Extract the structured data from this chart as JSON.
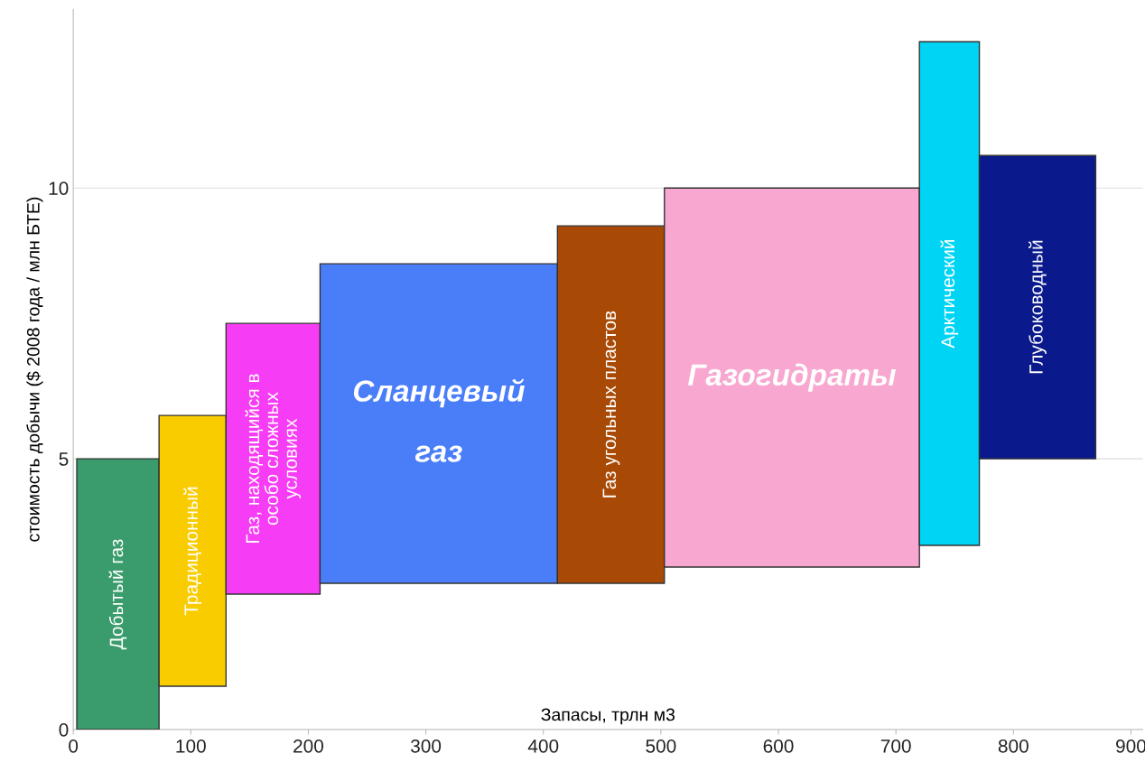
{
  "chart_data": {
    "type": "histogram",
    "ylabel": "стоимость добычи ($ 2008 года / млн БТЕ)",
    "xlabel": "Запасы, трлн м3",
    "categories": [
      "Добытый газ",
      "Традиционный",
      "Газ, находящийся в\nособо сложных\nусловиях",
      "Сланцевый\n\nгаз",
      "Газ угольных пластов",
      "Газогидраты",
      "Арктический",
      "Глубоководный"
    ],
    "bins": [
      3,
      73,
      130,
      210,
      412,
      503,
      720,
      771,
      870
    ],
    "base": [
      0,
      0.8,
      2.5,
      2.7,
      2.7,
      3.0,
      3.4,
      5.0
    ],
    "values": [
      5.0,
      5.0,
      5.0,
      5.9,
      6.6,
      7.0,
      9.3,
      5.6
    ],
    "colors": [
      "#3a9c6c",
      "#f9cc00",
      "#f73cf5",
      "#4a7ef9",
      "#a84a06",
      "#f8a8d0",
      "#00d4f5",
      "#0a1a8c"
    ],
    "xlim": [
      0,
      910
    ],
    "xticks": [
      0,
      100,
      200,
      300,
      400,
      500,
      600,
      700,
      800,
      900
    ],
    "ylim": [
      0,
      13.3
    ],
    "yticks": [
      0,
      5,
      10
    ],
    "grid": "y"
  }
}
